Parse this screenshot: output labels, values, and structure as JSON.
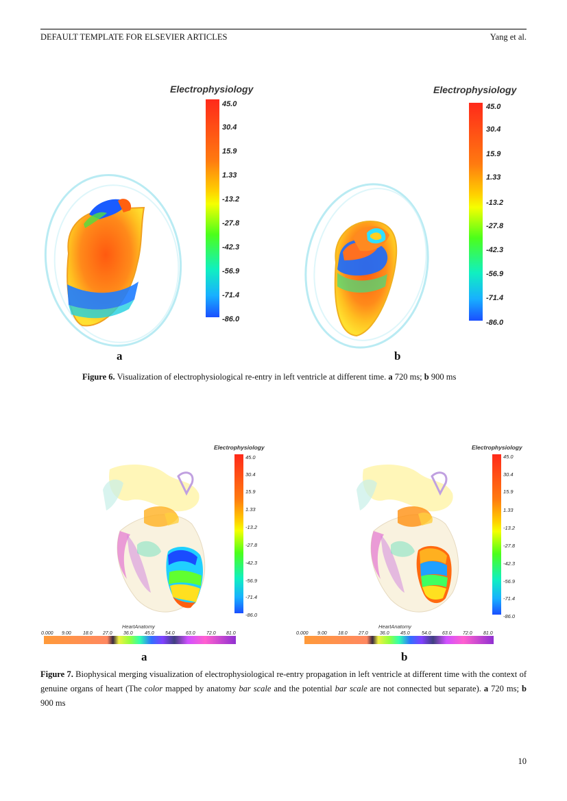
{
  "header": {
    "left": "DEFAULT TEMPLATE FOR ELSEVIER ARTICLES",
    "right": "Yang et al."
  },
  "page_number": "10",
  "colorbar": {
    "title": "Electrophysiology",
    "ticks": [
      "45.0",
      "30.4",
      "15.9",
      "1.33",
      "-13.2",
      "-27.8",
      "-42.3",
      "-56.9",
      "-71.4",
      "-86.0"
    ]
  },
  "anatomy_bar": {
    "title": "HeartAnatomy",
    "ticks": [
      "0.000",
      "9.00",
      "18.0",
      "27.0",
      "36.0",
      "45.0",
      "54.0",
      "63.0",
      "72.0",
      "81.0"
    ]
  },
  "figure6": {
    "panel_a": "a",
    "panel_b": "b",
    "caption": {
      "label": "Figure 6.",
      "text": " Visualization of electrophysiological re-entry in left ventricle at different time. ",
      "a": "a",
      "a_text": " 720 ms; ",
      "b": "b",
      "b_text": " 900 ms"
    }
  },
  "figure7": {
    "panel_a": "a",
    "panel_b": "b",
    "caption": {
      "label": "Figure 7.",
      "t1": " Biophysical merging visualization of electrophysiological re-entry propagation in left ventricle at different time with the context of genuine organs of heart (The ",
      "i1": "color",
      "t2": " mapped by anatomy ",
      "i2": "bar scale",
      "t3": " and the potential ",
      "i3": "bar scale",
      "t4": " are not connected but separate). ",
      "a": "a",
      "a_text": " 720 ms; ",
      "b": "b",
      "b_text": " 900 ms"
    }
  }
}
